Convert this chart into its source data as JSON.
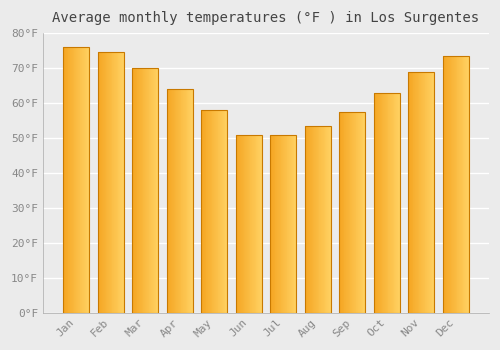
{
  "title": "Average monthly temperatures (°F ) in Los Surgentes",
  "months": [
    "Jan",
    "Feb",
    "Mar",
    "Apr",
    "May",
    "Jun",
    "Jul",
    "Aug",
    "Sep",
    "Oct",
    "Nov",
    "Dec"
  ],
  "values": [
    76.0,
    74.5,
    70.0,
    64.0,
    58.0,
    51.0,
    51.0,
    53.5,
    57.5,
    63.0,
    69.0,
    73.5
  ],
  "bar_color_left": "#F5A623",
  "bar_color_right": "#FFD060",
  "bar_edge_color": "#C87900",
  "ylim": [
    0,
    80
  ],
  "yticks": [
    0,
    10,
    20,
    30,
    40,
    50,
    60,
    70,
    80
  ],
  "ytick_labels": [
    "0°F",
    "10°F",
    "20°F",
    "30°F",
    "40°F",
    "50°F",
    "60°F",
    "70°F",
    "80°F"
  ],
  "background_color": "#ebebeb",
  "grid_color": "#ffffff",
  "title_fontsize": 10,
  "tick_fontsize": 8,
  "tick_color": "#888888"
}
